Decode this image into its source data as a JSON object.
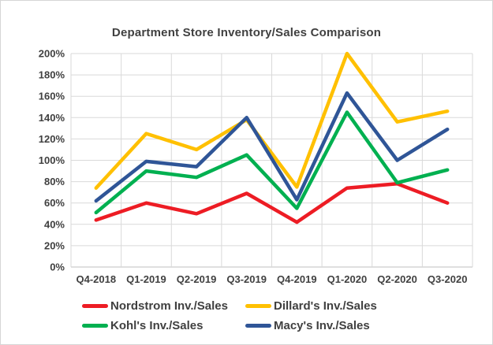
{
  "chart_data": {
    "type": "line",
    "title": "Department Store Inventory/Sales Comparison",
    "categories": [
      "Q4-2018",
      "Q1-2019",
      "Q2-2019",
      "Q3-2019",
      "Q4-2019",
      "Q1-2020",
      "Q2-2020",
      "Q3-2020"
    ],
    "series": [
      {
        "name": "Nordstrom Inv./Sales",
        "color": "#ED1C24",
        "values": [
          44,
          60,
          50,
          69,
          42,
          74,
          78,
          60
        ]
      },
      {
        "name": "Dillard's Inv./Sales",
        "color": "#FFC000",
        "values": [
          74,
          125,
          110,
          138,
          75,
          200,
          136,
          146
        ]
      },
      {
        "name": "Kohl's Inv./Sales",
        "color": "#00B050",
        "values": [
          51,
          90,
          84,
          105,
          55,
          145,
          79,
          91
        ]
      },
      {
        "name": "Macy's Inv./Sales",
        "color": "#2F5597",
        "values": [
          62,
          99,
          94,
          140,
          63,
          163,
          100,
          129
        ]
      }
    ],
    "xlabel": "",
    "ylabel": "",
    "ylim": [
      0,
      200
    ],
    "y_tick_step": 20,
    "y_tick_suffix": "%",
    "grid": true,
    "legend_position": "bottom",
    "colors": {
      "gridline": "#D9D9D9",
      "axis_line": "#BFBFBF",
      "axis_text": "#404040",
      "title_text": "#404040"
    }
  }
}
